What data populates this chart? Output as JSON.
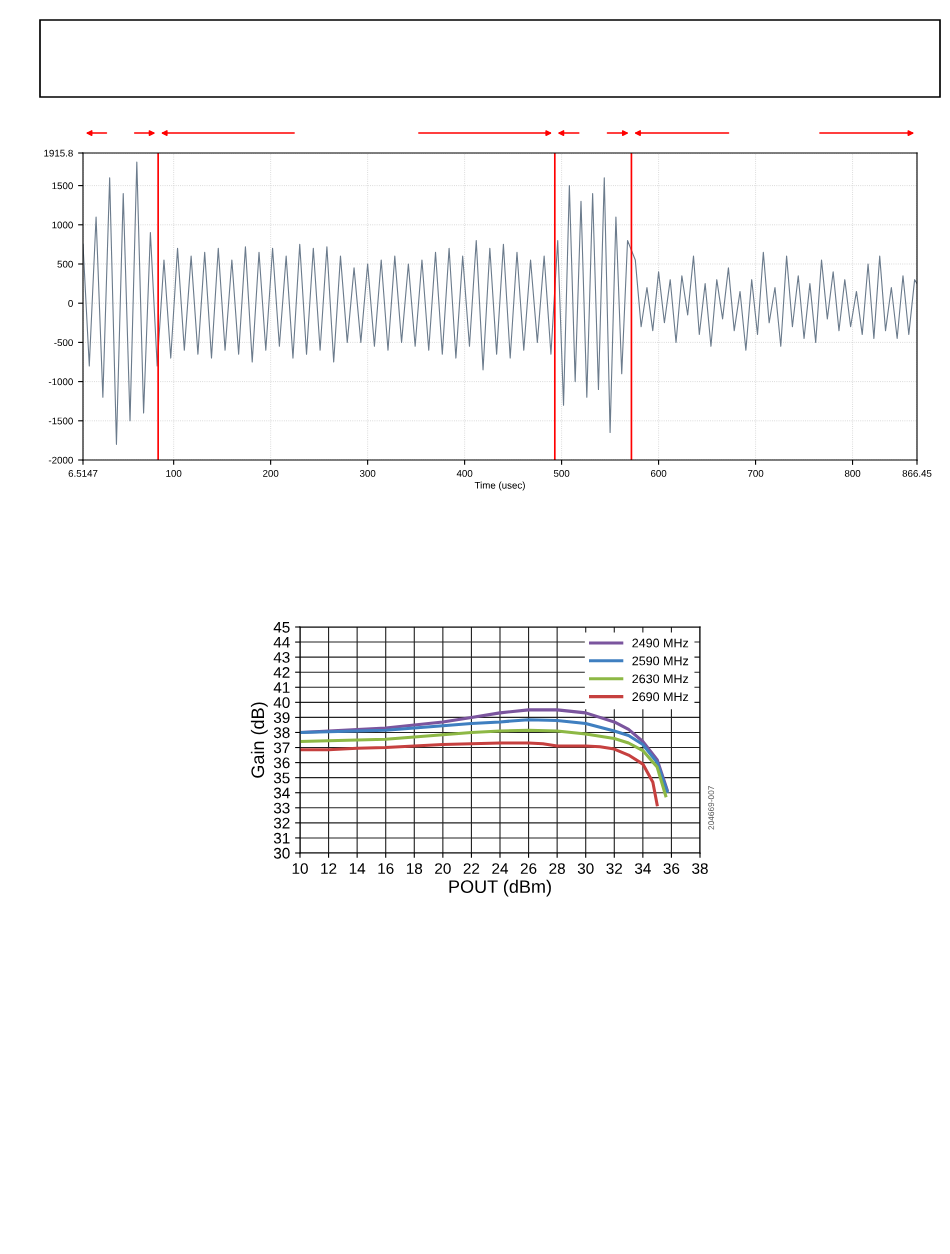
{
  "chart_data": [
    {
      "type": "line",
      "xlabel": "Time (usec)",
      "xlim": [
        6.5147,
        866.45
      ],
      "ylim": [
        -2000,
        1915.8
      ],
      "xticks": [
        6.5147,
        100,
        200,
        300,
        400,
        500,
        600,
        700,
        800,
        866.45
      ],
      "yticks": [
        -2000,
        -1500,
        -1000,
        -500,
        0,
        500,
        1000,
        1500,
        1915.8
      ],
      "grid": true,
      "legend": false,
      "marker": "none",
      "line_style": "solid",
      "ref_lines": [
        {
          "axis": "x",
          "value": 84,
          "color": "#ff0000"
        },
        {
          "axis": "x",
          "value": 493,
          "color": "#ff0000"
        },
        {
          "axis": "x",
          "value": 572,
          "color": "#ff0000"
        }
      ],
      "series": [
        {
          "color": "#6b7b8c",
          "x": [
            6.5147,
            13,
            20,
            27,
            34,
            41,
            48,
            55,
            62,
            69,
            76,
            83,
            90,
            97,
            104,
            111,
            118,
            125,
            132,
            139,
            146,
            153,
            160,
            167,
            174,
            181,
            188,
            195,
            202,
            209,
            216,
            223,
            230,
            237,
            244,
            251,
            258,
            265,
            272,
            279,
            286,
            293,
            300,
            307,
            314,
            321,
            328,
            335,
            342,
            349,
            356,
            363,
            370,
            377,
            384,
            391,
            398,
            405,
            412,
            419,
            426,
            433,
            440,
            447,
            454,
            461,
            468,
            475,
            482,
            489,
            496,
            502,
            508,
            514,
            520,
            526,
            532,
            538,
            544,
            550,
            556,
            562,
            568,
            576,
            582,
            588,
            594,
            600,
            606,
            612,
            618,
            624,
            630,
            636,
            642,
            648,
            654,
            660,
            666,
            672,
            678,
            684,
            690,
            696,
            702,
            708,
            714,
            720,
            726,
            732,
            738,
            744,
            750,
            756,
            762,
            768,
            774,
            780,
            786,
            792,
            798,
            804,
            810,
            816,
            822,
            828,
            834,
            840,
            846,
            852,
            858,
            864,
            866.45
          ],
          "values": [
            750,
            -800,
            1100,
            -1200,
            1600,
            -1800,
            1400,
            -1500,
            1800,
            -1400,
            900,
            -800,
            550,
            -700,
            700,
            -600,
            600,
            -650,
            650,
            -700,
            700,
            -600,
            550,
            -650,
            720,
            -750,
            650,
            -600,
            700,
            -550,
            600,
            -700,
            750,
            -650,
            700,
            -600,
            720,
            -750,
            600,
            -500,
            450,
            -500,
            500,
            -550,
            550,
            -600,
            600,
            -500,
            500,
            -550,
            550,
            -600,
            650,
            -650,
            700,
            -700,
            600,
            -550,
            800,
            -850,
            700,
            -650,
            750,
            -700,
            650,
            -600,
            550,
            -500,
            600,
            -650,
            800,
            -1300,
            1500,
            -1000,
            1300,
            -1200,
            1400,
            -1100,
            1600,
            -1650,
            1100,
            -900,
            800,
            550,
            -300,
            200,
            -350,
            400,
            -250,
            300,
            -500,
            350,
            -150,
            600,
            -400,
            250,
            -550,
            300,
            -200,
            450,
            -350,
            150,
            -600,
            300,
            -400,
            650,
            -250,
            200,
            -550,
            600,
            -300,
            350,
            -450,
            250,
            -500,
            550,
            -200,
            400,
            -350,
            300,
            -300,
            150,
            -400,
            500,
            -450,
            600,
            -350,
            200,
            -450,
            350,
            -400,
            300,
            250
          ]
        }
      ]
    },
    {
      "type": "line",
      "xlabel": "POUT (dBm)",
      "ylabel": "Gain (dB)",
      "xlim": [
        10,
        38
      ],
      "ylim": [
        30,
        45
      ],
      "xticks": [
        10,
        12,
        14,
        16,
        18,
        20,
        22,
        24,
        26,
        28,
        30,
        32,
        34,
        36,
        38
      ],
      "yticks": [
        30,
        31,
        32,
        33,
        34,
        35,
        36,
        37,
        38,
        39,
        40,
        41,
        42,
        43,
        44,
        45
      ],
      "grid": true,
      "legend": "top right",
      "marker": "none",
      "line_style": "solid",
      "annotations": [
        "204669-007"
      ],
      "series": [
        {
          "name": "2490 MHz",
          "color": "#7b559e",
          "x": [
            10,
            12,
            14,
            16,
            18,
            20,
            22,
            24,
            26,
            28,
            30,
            32,
            33,
            34,
            35,
            35.7
          ],
          "values": [
            38.0,
            38.1,
            38.2,
            38.3,
            38.5,
            38.7,
            39.0,
            39.3,
            39.5,
            39.5,
            39.3,
            38.7,
            38.2,
            37.4,
            36.2,
            34.2
          ]
        },
        {
          "name": "2590 MHz",
          "color": "#3f7fc0",
          "x": [
            10,
            12,
            14,
            16,
            18,
            20,
            22,
            24,
            26,
            28,
            30,
            32,
            33,
            34,
            35,
            35.7
          ],
          "values": [
            38.0,
            38.05,
            38.1,
            38.15,
            38.3,
            38.45,
            38.6,
            38.7,
            38.85,
            38.8,
            38.6,
            38.1,
            37.8,
            37.2,
            36.0,
            34.1
          ]
        },
        {
          "name": "2630 MHz",
          "color": "#8db845",
          "x": [
            10,
            12,
            14,
            16,
            18,
            20,
            22,
            24,
            26,
            28,
            30,
            32,
            33,
            34,
            35,
            35.6
          ],
          "values": [
            37.4,
            37.45,
            37.5,
            37.55,
            37.7,
            37.85,
            38.0,
            38.1,
            38.15,
            38.1,
            37.9,
            37.6,
            37.3,
            36.8,
            35.7,
            33.8
          ]
        },
        {
          "name": "2690 MHz",
          "color": "#c6403f",
          "x": [
            10,
            12,
            14,
            16,
            18,
            20,
            22,
            24,
            26,
            27,
            28,
            30,
            31,
            32,
            33,
            34,
            34.7,
            35
          ],
          "values": [
            36.85,
            36.85,
            36.95,
            37.0,
            37.1,
            37.2,
            37.25,
            37.3,
            37.3,
            37.25,
            37.1,
            37.1,
            37.05,
            36.9,
            36.5,
            35.9,
            34.7,
            33.2
          ]
        }
      ]
    }
  ]
}
